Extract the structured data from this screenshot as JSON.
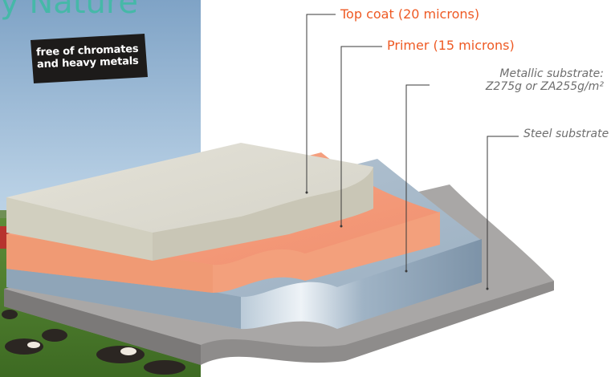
{
  "brand": {
    "title_fragment": "y Nature"
  },
  "badge": {
    "line1": "free of chromates",
    "line2": "and heavy metals"
  },
  "layers": [
    {
      "id": "top-coat",
      "label": "Top coat (20 microns)",
      "color": "#ee5a24"
    },
    {
      "id": "primer",
      "label": "Primer (15 microns)",
      "color": "#ee5a24"
    },
    {
      "id": "metallic",
      "label_line1": "Metallic substrate:",
      "label_line2": "Z275g or ZA255g/m²",
      "color": "#6e6e6e"
    },
    {
      "id": "steel",
      "label": "Steel substrate",
      "color": "#6e6e6e"
    }
  ]
}
